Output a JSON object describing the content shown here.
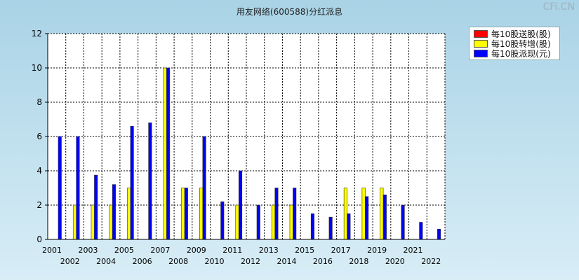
{
  "title": "用友网络(600588)分红派息",
  "watermark": "CFi.CN",
  "legend": [
    {
      "name": "每10股送股(股)",
      "color": "#ff0000"
    },
    {
      "name": "每10股转增(股)",
      "color": "#ffff00"
    },
    {
      "name": "每10股派现(元)",
      "color": "#0000ff"
    }
  ],
  "chart_data": {
    "type": "bar",
    "categories": [
      "2001",
      "2002",
      "2003",
      "2004",
      "2005",
      "2006",
      "2007",
      "2008",
      "2009",
      "2010",
      "2011",
      "2012",
      "2013",
      "2014",
      "2015",
      "2016",
      "2017",
      "2018",
      "2019",
      "2020",
      "2021",
      "2022"
    ],
    "series": [
      {
        "name": "每10股送股(股)",
        "color": "#ff0000",
        "values": [
          0,
          0,
          0,
          0,
          0,
          0,
          0,
          0,
          0,
          0,
          0,
          0,
          0,
          0,
          0,
          0,
          0,
          0,
          0,
          0,
          0,
          0
        ]
      },
      {
        "name": "每10股转增(股)",
        "color": "#ffff00",
        "values": [
          0,
          2,
          2,
          2,
          3,
          0,
          10,
          3,
          3,
          0,
          2,
          0,
          2,
          2,
          0,
          0,
          3,
          3,
          3,
          0,
          0,
          0
        ]
      },
      {
        "name": "每10股派现(元)",
        "color": "#0000ff",
        "values": [
          6,
          6,
          3.75,
          3.2,
          6.6,
          6.8,
          10,
          3,
          6,
          2.2,
          4,
          2,
          3,
          3,
          1.5,
          1.3,
          1.5,
          2.5,
          2.6,
          2,
          1,
          0.6
        ]
      }
    ],
    "ylim": [
      0,
      12
    ],
    "yticks": [
      0,
      2,
      4,
      6,
      8,
      10,
      12
    ],
    "grid": true,
    "legend_position": "top-right"
  }
}
